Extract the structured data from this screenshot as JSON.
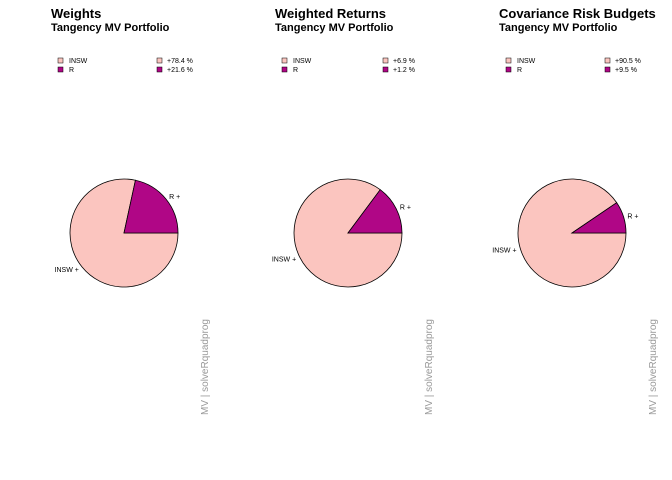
{
  "colors": {
    "INSW": "#fbc5bf",
    "R": "#b00686",
    "side_text": "#9a9a9a"
  },
  "chart_data": [
    {
      "type": "pie",
      "title": "Weights",
      "subtitle": "Tangency MV Portfolio",
      "categories": [
        "INSW",
        "R"
      ],
      "values": [
        78.4,
        21.6
      ],
      "legend": [
        {
          "name": "INSW",
          "label": "+78.4 %"
        },
        {
          "name": "R",
          "label": "+21.6 %"
        }
      ],
      "slice_labels": [
        "INSW +",
        "R +"
      ],
      "side_label": "MV | solveRquadprog",
      "legend_position": "top"
    },
    {
      "type": "pie",
      "title": "Weighted Returns",
      "subtitle": "Tangency MV Portfolio",
      "categories": [
        "INSW",
        "R"
      ],
      "values": [
        6.9,
        1.2
      ],
      "legend": [
        {
          "name": "INSW",
          "label": "+6.9 %"
        },
        {
          "name": "R",
          "label": "+1.2 %"
        }
      ],
      "slice_labels": [
        "INSW +",
        "R +"
      ],
      "side_label": "MV | solveRquadprog",
      "legend_position": "top"
    },
    {
      "type": "pie",
      "title": "Covariance Risk Budgets",
      "subtitle": "Tangency MV Portfolio",
      "categories": [
        "INSW",
        "R"
      ],
      "values": [
        90.5,
        9.5
      ],
      "legend": [
        {
          "name": "INSW",
          "label": "+90.5 %"
        },
        {
          "name": "R",
          "label": "+9.5 %"
        }
      ],
      "slice_labels": [
        "INSW +",
        "R +"
      ],
      "side_label": "MV | solveRquadprog",
      "legend_position": "top"
    }
  ]
}
